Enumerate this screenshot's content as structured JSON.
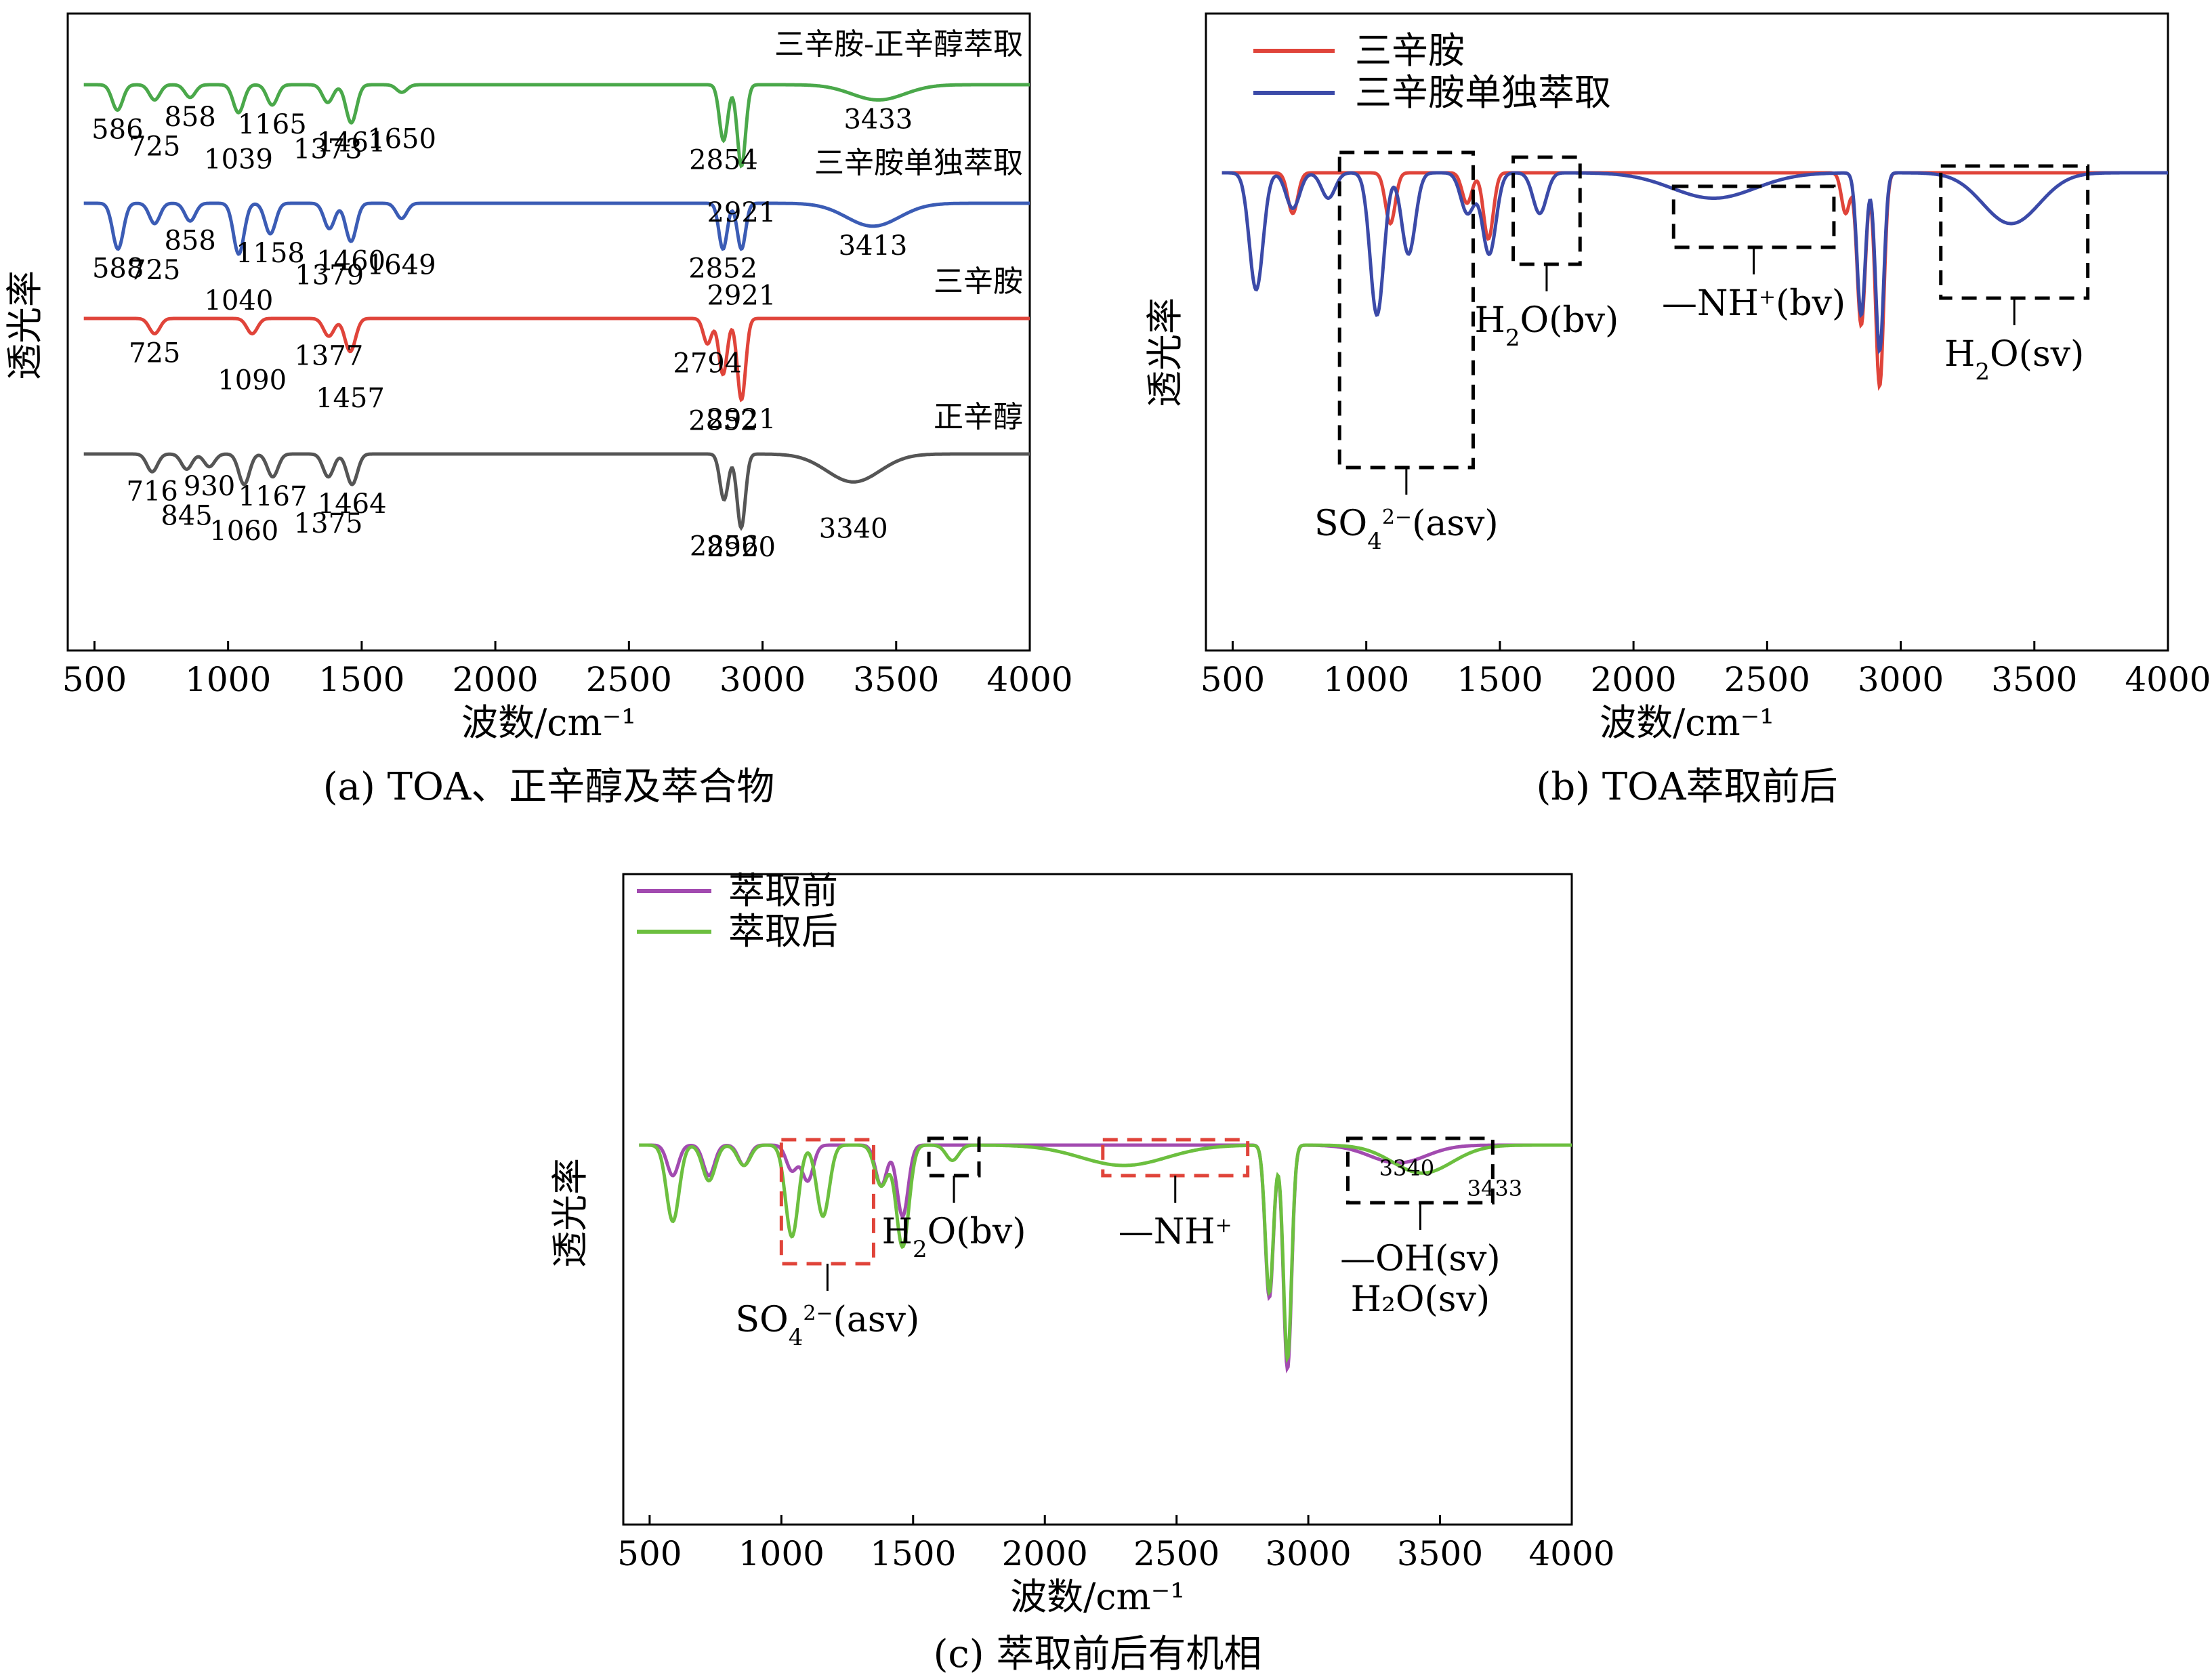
{
  "figure_captions": [
    "(a) TOA、正辛醇及萃合物",
    "(b) TOA萃取前后",
    "(c) 萃取前后有机相"
  ],
  "chart_data": [
    {
      "id": "a",
      "type": "line",
      "title": "(a) TOA、正辛醇及萃合物",
      "xlabel": "波数/cm⁻¹",
      "ylabel": "透光率",
      "xlim": [
        400,
        4000
      ],
      "xticks": [
        500,
        1000,
        1500,
        2000,
        2500,
        3000,
        3500,
        4000
      ],
      "series": [
        {
          "name": "三辛胺-正辛醇萃取",
          "color": "#4aa84a",
          "offset": 0,
          "peaks": [
            {
              "x": 586,
              "depth": 0.5
            },
            {
              "x": 725,
              "depth": 0.3
            },
            {
              "x": 858,
              "depth": 0.25
            },
            {
              "x": 1039,
              "depth": 0.55
            },
            {
              "x": 1165,
              "depth": 0.4
            },
            {
              "x": 1373,
              "depth": 0.35
            },
            {
              "x": 1461,
              "depth": 0.75
            },
            {
              "x": 1650,
              "depth": 0.15
            },
            {
              "x": 2854,
              "depth": 1.1
            },
            {
              "x": 2921,
              "depth": 1.6
            },
            {
              "x": 3433,
              "depth": 0.3
            }
          ],
          "labels": [
            "586",
            "725",
            "858",
            "1039",
            "1165",
            "1373",
            "1461",
            "1650",
            "2854",
            "2921",
            "3433"
          ]
        },
        {
          "name": "三辛胺单独萃取",
          "color": "#3b5cb5",
          "offset": 1,
          "peaks": [
            {
              "x": 588,
              "depth": 0.9
            },
            {
              "x": 725,
              "depth": 0.4
            },
            {
              "x": 858,
              "depth": 0.35
            },
            {
              "x": 1040,
              "depth": 1.0
            },
            {
              "x": 1158,
              "depth": 0.6
            },
            {
              "x": 1379,
              "depth": 0.5
            },
            {
              "x": 1460,
              "depth": 0.75
            },
            {
              "x": 1649,
              "depth": 0.3
            },
            {
              "x": 2852,
              "depth": 0.9
            },
            {
              "x": 2921,
              "depth": 0.9
            },
            {
              "x": 3413,
              "depth": 0.45
            }
          ],
          "labels": [
            "588",
            "725",
            "858",
            "1040",
            "1158",
            "1379",
            "1460",
            "1649",
            "2852",
            "2921",
            "3413"
          ]
        },
        {
          "name": "三辛胺",
          "color": "#e0443a",
          "offset": 2,
          "peaks": [
            {
              "x": 725,
              "depth": 0.3
            },
            {
              "x": 1090,
              "depth": 0.3
            },
            {
              "x": 1377,
              "depth": 0.35
            },
            {
              "x": 1457,
              "depth": 0.65
            },
            {
              "x": 2794,
              "depth": 0.5
            },
            {
              "x": 2852,
              "depth": 1.1
            },
            {
              "x": 2921,
              "depth": 1.6
            }
          ],
          "labels": [
            "725",
            "1090",
            "1377",
            "1457",
            "2794",
            "2852",
            "2921"
          ]
        },
        {
          "name": "正辛醇",
          "color": "#555555",
          "offset": 3,
          "peaks": [
            {
              "x": 716,
              "depth": 0.35
            },
            {
              "x": 845,
              "depth": 0.3
            },
            {
              "x": 930,
              "depth": 0.25
            },
            {
              "x": 1060,
              "depth": 0.6
            },
            {
              "x": 1167,
              "depth": 0.45
            },
            {
              "x": 1375,
              "depth": 0.45
            },
            {
              "x": 1464,
              "depth": 0.6
            },
            {
              "x": 2856,
              "depth": 0.9
            },
            {
              "x": 2920,
              "depth": 1.45
            },
            {
              "x": 3340,
              "depth": 0.55
            }
          ],
          "labels": [
            "716",
            "845",
            "930",
            "1060",
            "1167",
            "1375",
            "1464",
            "2856",
            "2920",
            "3340"
          ]
        }
      ]
    },
    {
      "id": "b",
      "type": "line",
      "title": "(b) TOA萃取前后",
      "xlabel": "波数/cm⁻¹",
      "ylabel": "透光率",
      "xlim": [
        400,
        4000
      ],
      "xticks": [
        500,
        1000,
        1500,
        2000,
        2500,
        3000,
        3500,
        4000
      ],
      "legend": [
        {
          "name": "三辛胺",
          "color": "#e0443a"
        },
        {
          "name": "三辛胺单独萃取",
          "color": "#3b4aa8"
        }
      ],
      "annotations": [
        {
          "label": "SO",
          "sub": "4",
          "sup": "2−",
          "rest": "(asv)",
          "x1": 900,
          "x2": 1400
        },
        {
          "label": "H",
          "sub": "2",
          "rest": "O(bv)",
          "x1": 1550,
          "x2": 1800
        },
        {
          "label": "—NH",
          "sup": "+",
          "rest": "(bv)",
          "x1": 2150,
          "x2": 2750
        },
        {
          "label": "H",
          "sub": "2",
          "rest": "O(sv)",
          "x1": 3150,
          "x2": 3700
        }
      ]
    },
    {
      "id": "c",
      "type": "line",
      "title": "(c) 萃取前后有机相",
      "xlabel": "波数/cm⁻¹",
      "ylabel": "透光率",
      "xlim": [
        400,
        4000
      ],
      "xticks": [
        500,
        1000,
        1500,
        2000,
        2500,
        3000,
        3500,
        4000
      ],
      "legend": [
        {
          "name": "萃取前",
          "color": "#a24bb0"
        },
        {
          "name": "萃取后",
          "color": "#6cbf3f"
        }
      ],
      "annotations": [
        {
          "label": "SO",
          "sub": "4",
          "sup": "2−",
          "rest": "(asv)",
          "color": "#e0443a",
          "x1": 1000,
          "x2": 1350
        },
        {
          "label": "H",
          "sub": "2",
          "rest": "O(bv)",
          "color": "#000000",
          "x1": 1560,
          "x2": 1750
        },
        {
          "label": "—NH",
          "sup": "+",
          "rest": "",
          "color": "#e0443a",
          "x1": 2220,
          "x2": 2770
        },
        {
          "label": "—OH(sv)",
          "line2": "H₂O(sv)",
          "color": "#000000",
          "x1": 3150,
          "x2": 3700,
          "peak_labels": [
            "3340",
            "3433"
          ]
        }
      ]
    }
  ]
}
